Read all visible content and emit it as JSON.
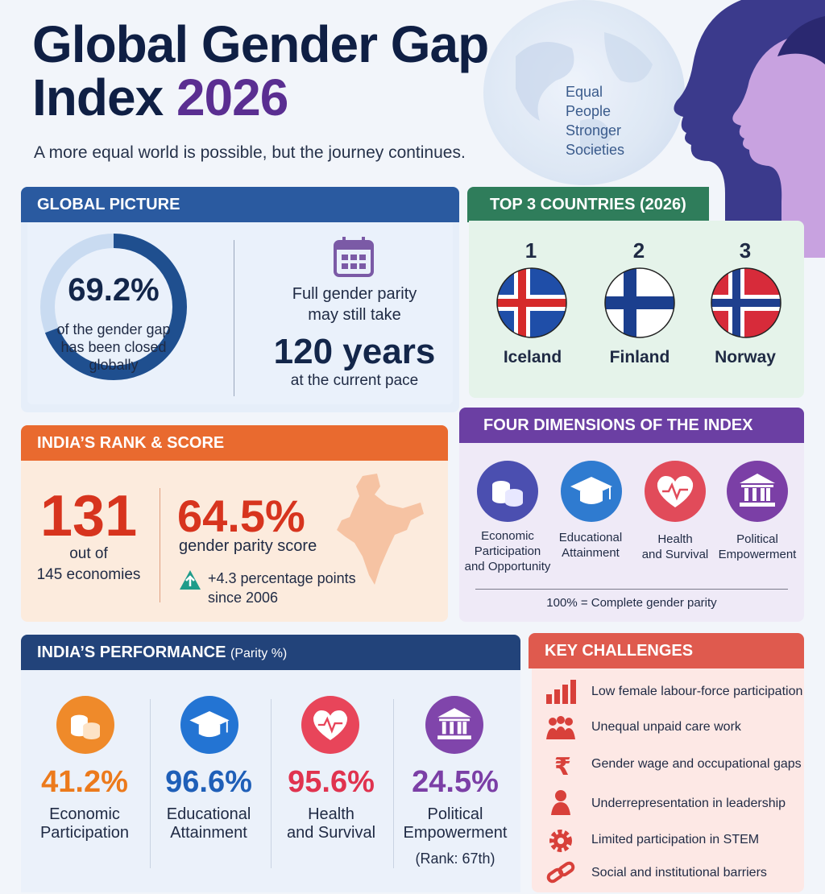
{
  "header": {
    "title_line1": "Global Gender Gap",
    "title_line2_word": "Index",
    "title_year": "2026",
    "subtitle": "A more equal world is possible, but the journey continues.",
    "globe_lines": [
      "Equal",
      "People",
      "Stronger",
      "Societies"
    ]
  },
  "global_picture": {
    "heading": "GLOBAL PICTURE",
    "percent": "69.2%",
    "percent_value": 69.2,
    "percent_label_lines": [
      "of the gender gap",
      "has been closed",
      "globally"
    ],
    "parity_line1": "Full gender parity",
    "parity_line2": "may still take",
    "years": "120 years",
    "pace": "at the current pace"
  },
  "top3": {
    "heading": "TOP 3 COUNTRIES (2026)",
    "countries": [
      {
        "rank": "1",
        "name": "Iceland"
      },
      {
        "rank": "2",
        "name": "Finland"
      },
      {
        "rank": "3",
        "name": "Norway"
      }
    ]
  },
  "india_rank": {
    "heading": "INDIA’S RANK & SCORE",
    "rank": "131",
    "out_of_line1": "out of",
    "out_of_line2": "145 economies",
    "score": "64.5%",
    "score_label": "gender parity score",
    "gain_line1": "+4.3 percentage points",
    "gain_line2": "since 2006"
  },
  "four_dimensions": {
    "heading": "FOUR DIMENSIONS OF THE INDEX",
    "items": [
      {
        "lines": [
          "Economic",
          "Participation",
          "and Opportunity"
        ],
        "icon": "coins-icon"
      },
      {
        "lines": [
          "Educational",
          "Attainment"
        ],
        "icon": "graduation-cap-icon"
      },
      {
        "lines": [
          "Health",
          "and Survival"
        ],
        "icon": "heart-pulse-icon"
      },
      {
        "lines": [
          "Political",
          "Empowerment"
        ],
        "icon": "government-building-icon"
      }
    ],
    "note": "100% = Complete gender parity"
  },
  "performance": {
    "heading": "INDIA’S PERFORMANCE",
    "heading_suffix": "(Parity %)",
    "items": [
      {
        "value": "41.2%",
        "lines": [
          "Economic",
          "Participation"
        ],
        "color": "#ec7a1c"
      },
      {
        "value": "96.6%",
        "lines": [
          "Educational",
          "Attainment"
        ],
        "color": "#1f5fb8"
      },
      {
        "value": "95.6%",
        "lines": [
          "Health",
          "and Survival"
        ],
        "color": "#e0334f"
      },
      {
        "value": "24.5%",
        "lines": [
          "Political",
          "Empowerment"
        ],
        "color": "#7b3fa6",
        "extra": "(Rank: 67th)"
      }
    ]
  },
  "key_challenges": {
    "heading": "KEY CHALLENGES",
    "items": [
      "Low female labour-force participation",
      "Unequal unpaid care work",
      "Gender wage and occupational gaps",
      "Underrepresentation in leadership",
      "Limited participation in STEM",
      "Social and institutional barriers"
    ]
  }
}
